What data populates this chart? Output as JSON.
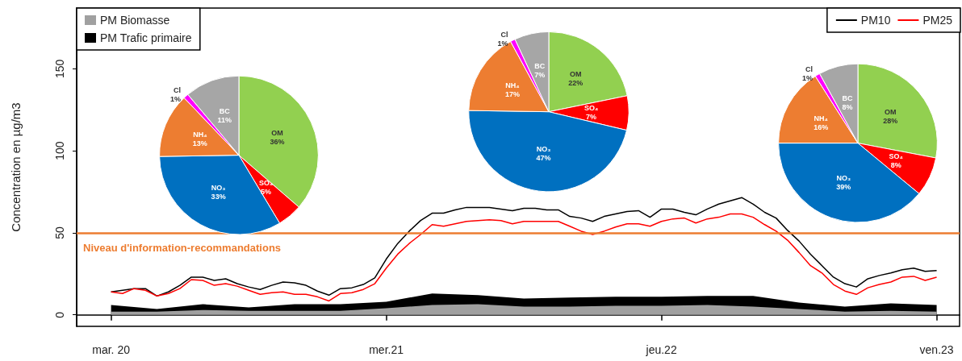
{
  "chart_data": [
    {
      "type": "line",
      "ylabel": "Concentration en µg/m3",
      "ylim": [
        -7,
        187
      ],
      "categories": [
        null,
        null,
        null,
        "mar. 20",
        null,
        null,
        null,
        null,
        null,
        null,
        null,
        null,
        null,
        null,
        null,
        null,
        null,
        null,
        null,
        null,
        null,
        null,
        null,
        null,
        null,
        null,
        null,
        "mer.21",
        null,
        null,
        null,
        null,
        null,
        null,
        null,
        null,
        null,
        null,
        null,
        null,
        null,
        null,
        null,
        null,
        null,
        null,
        null,
        null,
        null,
        null,
        null,
        "jeu.22",
        null,
        null,
        null,
        null,
        null,
        null,
        null,
        null,
        null,
        null,
        null,
        null,
        null,
        null,
        null,
        null,
        null,
        null,
        null,
        null,
        null,
        null,
        null,
        "ven.23",
        null,
        null
      ],
      "yticks": [
        0,
        50,
        100,
        150
      ],
      "grid": false,
      "legend": "top",
      "stacked": true,
      "marker": "none",
      "line_style": "solid",
      "ref_lines": [
        {
          "axis": "y",
          "value": 50,
          "label": "Niveau d'information-recommandations",
          "color": "#ed7d31"
        }
      ],
      "series": [
        {
          "name": "PM Biomasse",
          "type": "area",
          "color": "#a0a0a0",
          "values": [
            null,
            null,
            null,
            2,
            null,
            null,
            null,
            2,
            null,
            null,
            null,
            3,
            null,
            null,
            null,
            2.5,
            null,
            null,
            null,
            2.5,
            null,
            null,
            null,
            2.5,
            null,
            null,
            null,
            4,
            null,
            null,
            null,
            6,
            null,
            null,
            null,
            6.5,
            null,
            null,
            null,
            5,
            null,
            null,
            null,
            5,
            null,
            null,
            null,
            5.5,
            null,
            null,
            null,
            5.5,
            null,
            null,
            null,
            6,
            null,
            null,
            null,
            5,
            null,
            null,
            null,
            3.5,
            null,
            null,
            null,
            2,
            null,
            null,
            null,
            2.5,
            null,
            null,
            null,
            2,
            null,
            null
          ]
        },
        {
          "name": "PM Trafic primaire",
          "type": "area",
          "color": "#000000",
          "values": [
            null,
            null,
            null,
            4,
            null,
            null,
            null,
            1.5,
            null,
            null,
            null,
            3.5,
            null,
            null,
            null,
            2,
            null,
            null,
            null,
            4,
            null,
            null,
            null,
            4,
            null,
            null,
            null,
            4,
            null,
            null,
            null,
            7,
            null,
            null,
            null,
            5.5,
            null,
            null,
            null,
            5,
            null,
            null,
            null,
            5.5,
            null,
            null,
            null,
            5.5,
            null,
            null,
            null,
            5.5,
            null,
            null,
            null,
            5.5,
            null,
            null,
            null,
            6.5,
            null,
            null,
            null,
            4,
            null,
            null,
            null,
            3,
            null,
            null,
            null,
            4.5,
            null,
            null,
            null,
            4,
            null,
            null
          ]
        },
        {
          "name": "PM10",
          "type": "line",
          "color": "#000000",
          "values": [
            null,
            null,
            null,
            14,
            null,
            16,
            16,
            11.5,
            14,
            18,
            23,
            23,
            21,
            22,
            19,
            17,
            15.5,
            18,
            20,
            19.5,
            18,
            14.5,
            12,
            16,
            16.5,
            18.5,
            22.5,
            34,
            43.5,
            51,
            57.5,
            62,
            62,
            64,
            65.5,
            null,
            65.5,
            null,
            63.5,
            65,
            65,
            64,
            64,
            60,
            59,
            57,
            60,
            61.5,
            63,
            63.5,
            59.5,
            64.5,
            64.5,
            62.5,
            61,
            64.5,
            67.5,
            69.5,
            71.5,
            67.5,
            62.5,
            59,
            51.5,
            45,
            37,
            30,
            23,
            19,
            17,
            22,
            24,
            25.5,
            27.5,
            28.5,
            26.5,
            27,
            null,
            null
          ]
        },
        {
          "name": "PM25",
          "type": "line",
          "color": "#ff0000",
          "values": [
            null,
            null,
            null,
            14,
            13,
            16,
            15,
            11.5,
            13,
            16,
            21.5,
            21,
            18,
            19,
            17.5,
            15,
            12.5,
            13.5,
            14,
            12.5,
            12.5,
            11,
            8.5,
            13,
            13.5,
            15.5,
            19,
            28.5,
            37,
            43.5,
            49,
            55,
            54,
            55.5,
            57,
            null,
            58,
            57.5,
            55.5,
            57,
            null,
            null,
            57,
            54,
            51,
            49,
            51,
            53.5,
            55.5,
            55.5,
            54,
            57,
            58.5,
            59,
            56,
            58.5,
            59.5,
            61.5,
            61.5,
            59.5,
            55,
            51,
            45.5,
            38,
            30,
            25.5,
            18.5,
            14.5,
            12.5,
            16.5,
            18.5,
            20,
            23,
            23.5,
            21,
            23,
            null,
            null
          ]
        }
      ]
    },
    {
      "type": "pie",
      "categories": [
        "OM",
        "SO₄",
        "NO₃",
        "NH₄",
        "Cl",
        "BC"
      ],
      "values": [
        36,
        5,
        33,
        13,
        1,
        11
      ],
      "value_labels": [
        "36%",
        "5%",
        "33%",
        "13%",
        "1%",
        "11%"
      ],
      "colors": [
        "#92d050",
        "#ff0000",
        "#0070c0",
        "#ed7d31",
        "#ff00ff",
        "#a6a6a6"
      ]
    },
    {
      "type": "pie",
      "categories": [
        "OM",
        "SO₄",
        "NO₃",
        "NH₄",
        "Cl",
        "BC"
      ],
      "values": [
        22,
        7,
        47,
        17,
        1,
        7
      ],
      "value_labels": [
        "22%",
        "7%",
        "47%",
        "17%",
        "1%",
        "7%"
      ],
      "colors": [
        "#92d050",
        "#ff0000",
        "#0070c0",
        "#ed7d31",
        "#ff00ff",
        "#a6a6a6"
      ]
    },
    {
      "type": "pie",
      "categories": [
        "OM",
        "SO₄",
        "NO₃",
        "NH₄",
        "Cl",
        "BC"
      ],
      "values": [
        28,
        8,
        39,
        16,
        1,
        8
      ],
      "value_labels": [
        "28%",
        "8%",
        "39%",
        "16%",
        "1%",
        "8%"
      ],
      "colors": [
        "#92d050",
        "#ff0000",
        "#0070c0",
        "#ed7d31",
        "#ff00ff",
        "#a6a6a6"
      ]
    }
  ]
}
